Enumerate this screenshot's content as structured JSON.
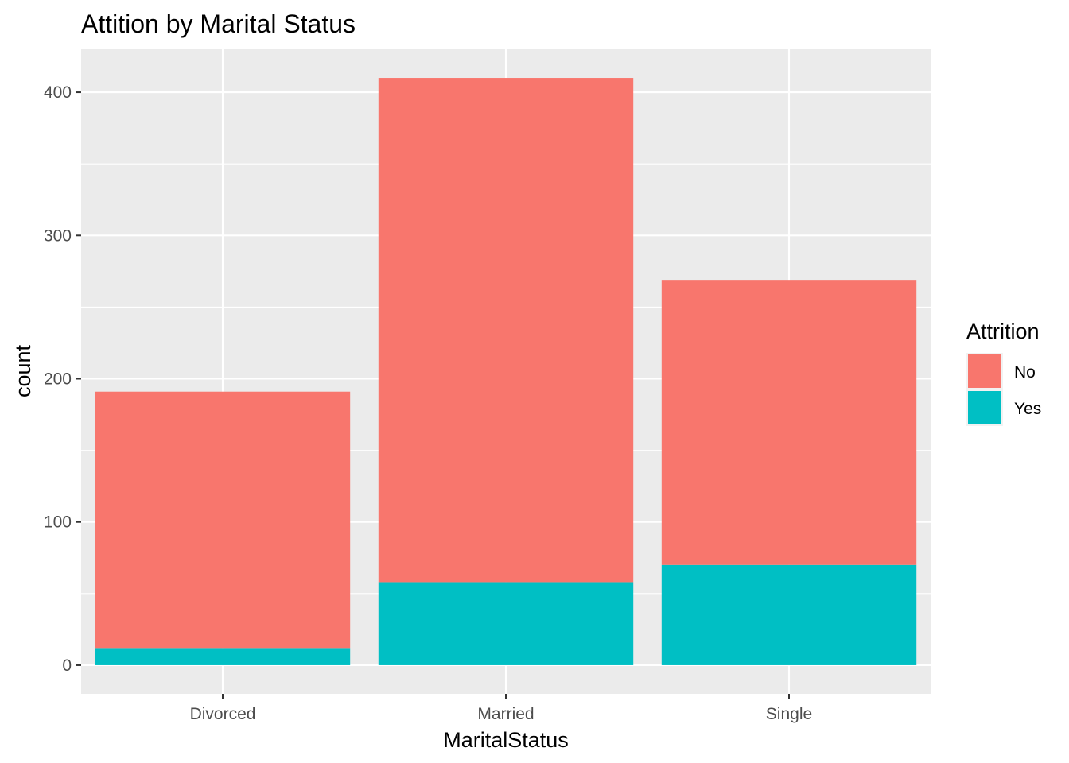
{
  "chart_data": {
    "type": "bar",
    "stacked": true,
    "title": "Attition by Marital Status",
    "xlabel": "MaritalStatus",
    "ylabel": "count",
    "categories": [
      "Divorced",
      "Married",
      "Single"
    ],
    "series": [
      {
        "name": "Yes",
        "color": "#00BFC4",
        "values": [
          12,
          58,
          70
        ]
      },
      {
        "name": "No",
        "color": "#F8766D",
        "values": [
          179,
          352,
          199
        ]
      }
    ],
    "ylim": [
      -20,
      430
    ],
    "yticks": [
      0,
      100,
      200,
      300,
      400
    ],
    "grid": true,
    "legend": {
      "title": "Attrition",
      "position": "right",
      "entries": [
        {
          "label": "No",
          "color": "#F8766D"
        },
        {
          "label": "Yes",
          "color": "#00BFC4"
        }
      ]
    },
    "panel_background": "#EBEBEB",
    "grid_color": "#FFFFFF"
  }
}
